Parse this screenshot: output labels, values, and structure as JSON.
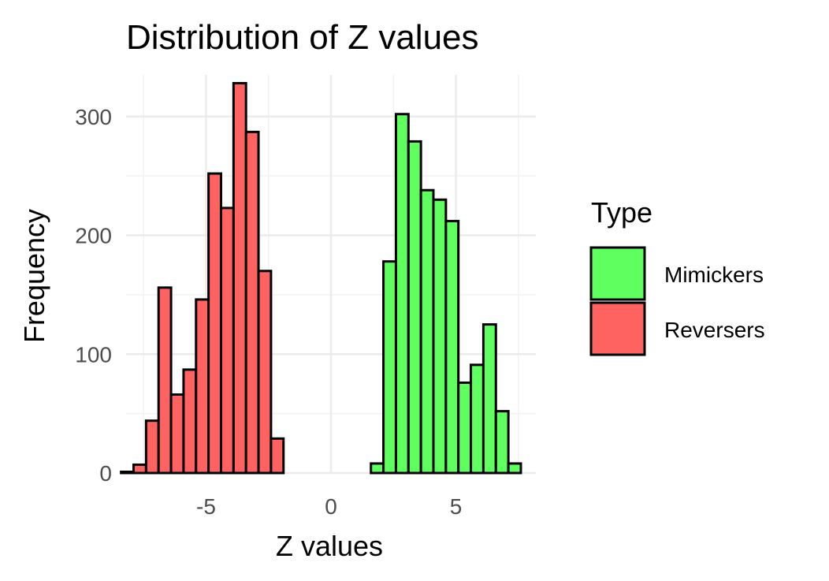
{
  "chart_data": {
    "type": "bar",
    "title": "Distribution of Z values",
    "xlabel": "Z values",
    "ylabel": "Frequency",
    "xlim": [
      -8.2,
      8.2
    ],
    "ylim": [
      0,
      335
    ],
    "x_ticks": [
      -5,
      0,
      5
    ],
    "x_tick_labels": [
      "-5",
      "0",
      "5"
    ],
    "y_ticks": [
      0,
      100,
      200,
      300
    ],
    "y_tick_labels": [
      "0",
      "100",
      "200",
      "300"
    ],
    "bin_width": 0.5,
    "legend": {
      "title": "Type",
      "position": "right"
    },
    "series": [
      {
        "name": "Mimickers",
        "color": "#5fff5f",
        "bin_starts": [
          1.6,
          2.1,
          2.6,
          3.1,
          3.6,
          4.1,
          4.6,
          5.1,
          5.6,
          6.1,
          6.6,
          7.1,
          7.6
        ],
        "values": [
          8,
          178,
          302,
          279,
          238,
          230,
          212,
          76,
          91,
          125,
          52,
          8,
          0
        ]
      },
      {
        "name": "Reversers",
        "color": "#ff6361",
        "bin_starts": [
          -8.4,
          -7.9,
          -7.4,
          -6.9,
          -6.4,
          -5.9,
          -5.4,
          -4.9,
          -4.4,
          -3.9,
          -3.4,
          -2.9,
          -2.4,
          -1.9,
          -1.4,
          -0.9,
          -0.4,
          0.1,
          0.6,
          1.1
        ],
        "values": [
          1,
          7,
          44,
          156,
          66,
          87,
          146,
          252,
          223,
          328,
          287,
          170,
          29,
          0,
          0,
          0,
          0,
          0,
          0,
          0
        ]
      }
    ]
  }
}
